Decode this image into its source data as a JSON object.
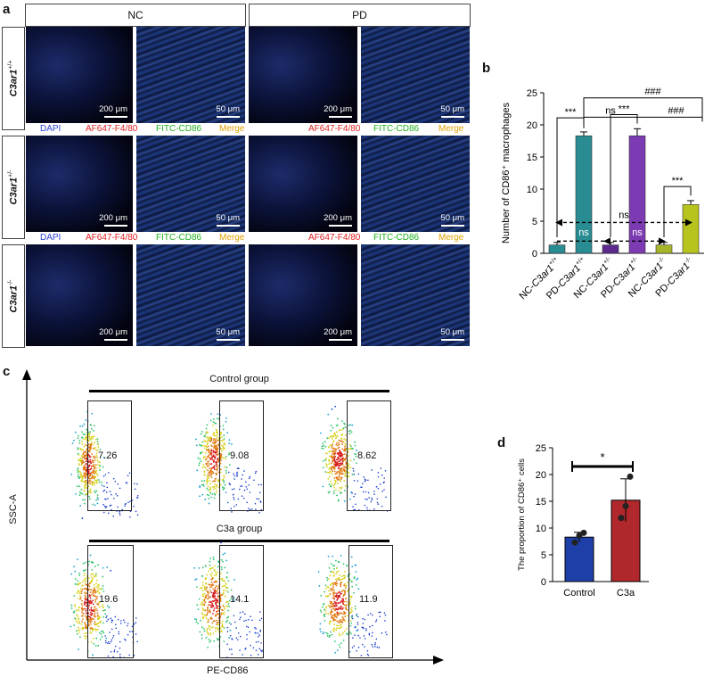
{
  "panel_a": {
    "letter": "a",
    "groups": [
      "NC",
      "PD"
    ],
    "rows": [
      {
        "base": "C3ar1",
        "sup": "+/+"
      },
      {
        "base": "C3ar1",
        "sup": "+/-"
      },
      {
        "base": "C3ar1",
        "sup": "-/-"
      }
    ],
    "scale_labels": {
      "overview": "200 μm",
      "zoom": "50 μm"
    },
    "channels": {
      "dapi": "DAPI",
      "af647": "AF647-F4/80",
      "fitc": "FITC-CD86",
      "merge": "Merge"
    }
  },
  "panel_b": {
    "letter": "b",
    "chart_data": {
      "type": "bar",
      "ylabel": "Number of CD86⁺ macrophages",
      "ylim": [
        0,
        25
      ],
      "yticks": [
        0,
        5,
        10,
        15,
        20,
        25
      ],
      "categories": [
        "NC-C3ar1+/+",
        "PD-C3ar1+/+",
        "NC-C3ar1+/-",
        "PD-C3ar1+/-",
        "NC-C3ar1-/-",
        "PD-C3ar1-/-"
      ],
      "category_labels": [
        {
          "pre": "NC-",
          "base": "C3ar1",
          "sup": "+/+"
        },
        {
          "pre": "PD-",
          "base": "C3ar1",
          "sup": "+/+"
        },
        {
          "pre": "NC-",
          "base": "C3ar1",
          "sup": "+/-"
        },
        {
          "pre": "PD-",
          "base": "C3ar1",
          "sup": "+/-"
        },
        {
          "pre": "NC-",
          "base": "C3ar1",
          "sup": "-/-"
        },
        {
          "pre": "PD-",
          "base": "C3ar1",
          "sup": "-/-"
        }
      ],
      "values": [
        1.3,
        18.3,
        1.3,
        18.3,
        1.3,
        7.6
      ],
      "errors": [
        0.4,
        0.6,
        0.4,
        1.1,
        0.4,
        0.6
      ],
      "colors": [
        "#2a8c93",
        "#2a8c93",
        "#5b2a8c",
        "#7d3bb3",
        "#a7b52a",
        "#b8c41e"
      ],
      "annotations": {
        "sig_pairs": [
          "***",
          "***",
          "***"
        ],
        "top_hash": "###",
        "mid_ns": "ns",
        "mid_hash": "###",
        "inner_ns": [
          "ns",
          "ns"
        ],
        "dash_ns": "ns"
      }
    }
  },
  "panel_c": {
    "letter": "c",
    "control_label": "Control group",
    "c3a_label": "C3a group",
    "ylabel": "SSC-A",
    "xlabel": "PE-CD86",
    "control_values": [
      "7.26",
      "9.08",
      "8.62"
    ],
    "c3a_values": [
      "19.6",
      "14.1",
      "11.9"
    ]
  },
  "panel_d": {
    "letter": "d",
    "chart_data": {
      "type": "bar",
      "ylabel": "The proportion of CD86⁺ cells",
      "ylim": [
        0,
        25
      ],
      "yticks": [
        0,
        5,
        10,
        15,
        20,
        25
      ],
      "categories": [
        "Control",
        "C3a"
      ],
      "values": [
        8.3,
        15.2
      ],
      "errors": [
        0.9,
        4.0
      ],
      "points": [
        [
          7.3,
          8.6,
          9.1
        ],
        [
          11.9,
          14.1,
          19.6
        ]
      ],
      "colors": [
        "#1f3fa8",
        "#b0282c"
      ],
      "significance": "*"
    }
  }
}
